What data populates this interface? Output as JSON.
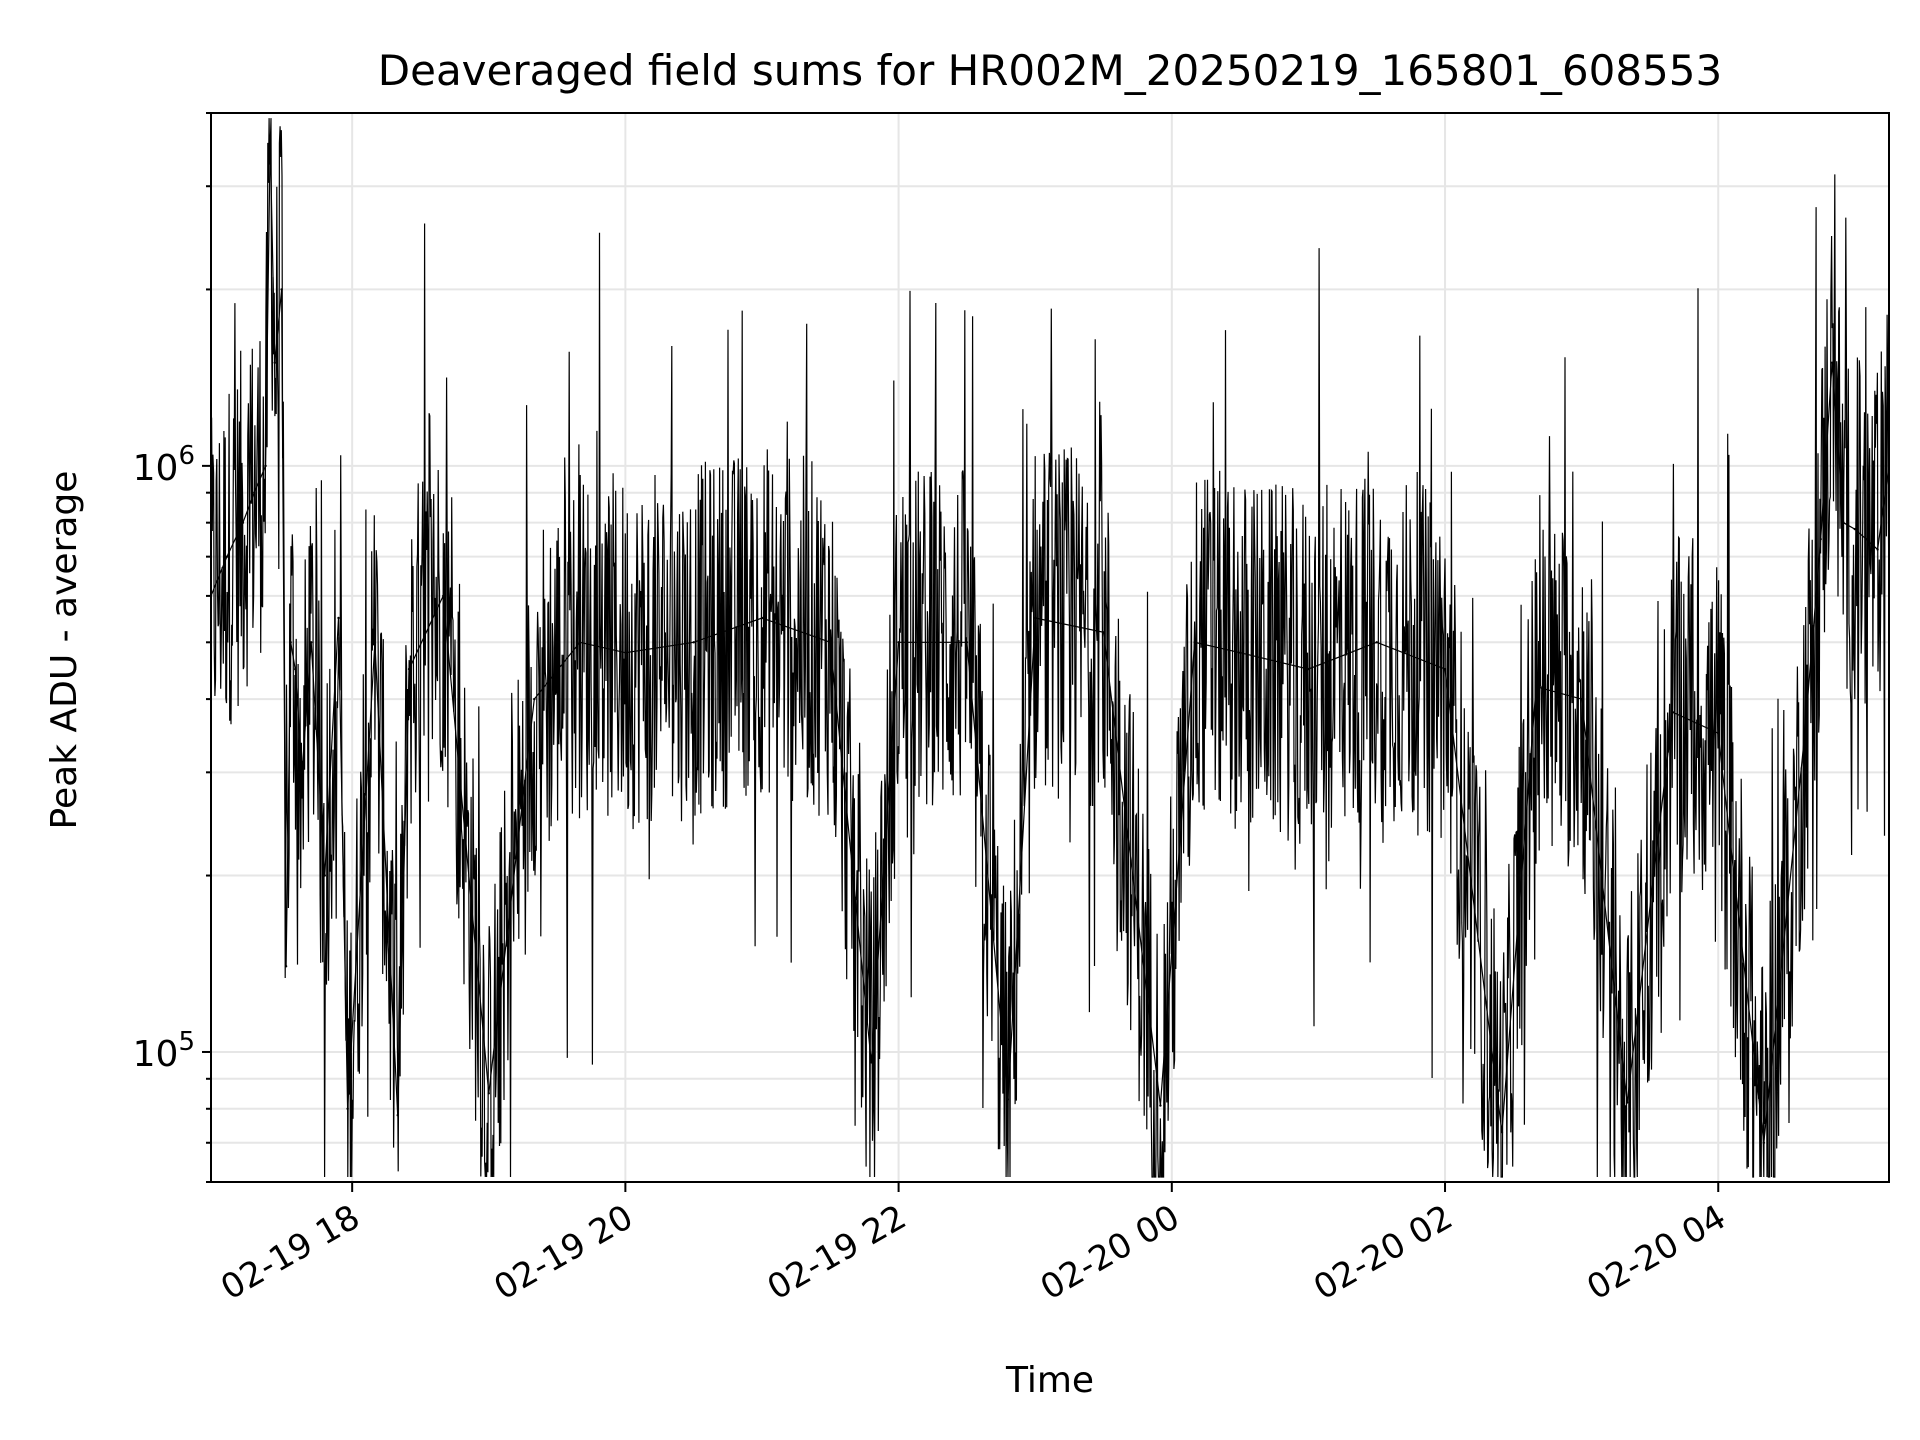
{
  "chart_data": {
    "type": "line",
    "title": "Deaveraged field sums for HR002M_20250219_165801_608553",
    "xlabel": "Time",
    "ylabel": "Peak ADU - average",
    "y_scale": "log",
    "ylim": [
      60000,
      4000000
    ],
    "xlim": [
      "2025-02-19 16:58",
      "2025-02-20 05:15"
    ],
    "x_tick_labels": [
      "02-19 18",
      "02-19 20",
      "02-19 22",
      "02-20 00",
      "02-20 02",
      "02-20 04"
    ],
    "x_tick_times": [
      "2025-02-19 18:00",
      "2025-02-19 20:00",
      "2025-02-19 22:00",
      "2025-02-20 00:00",
      "2025-02-20 02:00",
      "2025-02-20 04:00"
    ],
    "y_tick_labels": [
      "10^5",
      "10^6"
    ],
    "y_tick_values": [
      100000,
      1000000
    ],
    "grid": true,
    "line_color": "#000000",
    "series": [
      {
        "x": [
          "2025-02-19 16:58",
          "2025-02-19 17:05",
          "2025-02-19 17:12",
          "2025-02-19 17:17",
          "2025-02-19 17:22",
          "2025-02-19 17:24",
          "2025-02-19 17:26",
          "2025-02-19 17:29",
          "2025-02-19 17:31",
          "2025-02-19 17:33",
          "2025-02-19 17:35",
          "2025-02-19 17:38",
          "2025-02-19 17:42",
          "2025-02-19 17:48",
          "2025-02-19 17:54",
          "2025-02-19 17:58",
          "2025-02-19 18:10",
          "2025-02-19 18:20",
          "2025-02-19 18:25",
          "2025-02-19 18:40",
          "2025-02-19 19:00",
          "2025-02-19 19:20",
          "2025-02-19 19:40",
          "2025-02-19 20:00",
          "2025-02-19 20:30",
          "2025-02-19 21:00",
          "2025-02-19 21:30",
          "2025-02-19 21:48",
          "2025-02-19 22:00",
          "2025-02-19 22:30",
          "2025-02-19 22:48",
          "2025-02-19 23:00",
          "2025-02-19 23:30",
          "2025-02-19 23:55",
          "2025-02-20 00:10",
          "2025-02-20 00:30",
          "2025-02-20 01:00",
          "2025-02-20 01:30",
          "2025-02-20 02:00",
          "2025-02-20 02:25",
          "2025-02-20 02:40",
          "2025-02-20 03:00",
          "2025-02-20 03:20",
          "2025-02-20 03:40",
          "2025-02-20 04:00",
          "2025-02-20 04:20",
          "2025-02-20 04:38",
          "2025-02-20 04:45",
          "2025-02-20 04:50",
          "2025-02-20 04:55",
          "2025-02-20 05:00",
          "2025-02-20 05:05",
          "2025-02-20 05:10",
          "2025-02-20 05:15"
        ],
        "y": [
          600000,
          700000,
          800000,
          900000,
          1000000,
          3600000,
          1500000,
          2000000,
          140000,
          500000,
          450000,
          300000,
          500000,
          200000,
          550000,
          80000,
          500000,
          78000,
          450000,
          600000,
          85000,
          400000,
          500000,
          480000,
          500000,
          550000,
          500000,
          96000,
          500000,
          500000,
          83000,
          550000,
          520000,
          81000,
          500000,
          480000,
          450000,
          500000,
          450000,
          73000,
          420000,
          400000,
          82000,
          380000,
          350000,
          70000,
          350000,
          750000,
          1500000,
          800000,
          780000,
          750000,
          720000,
          1000000
        ]
      }
    ]
  }
}
